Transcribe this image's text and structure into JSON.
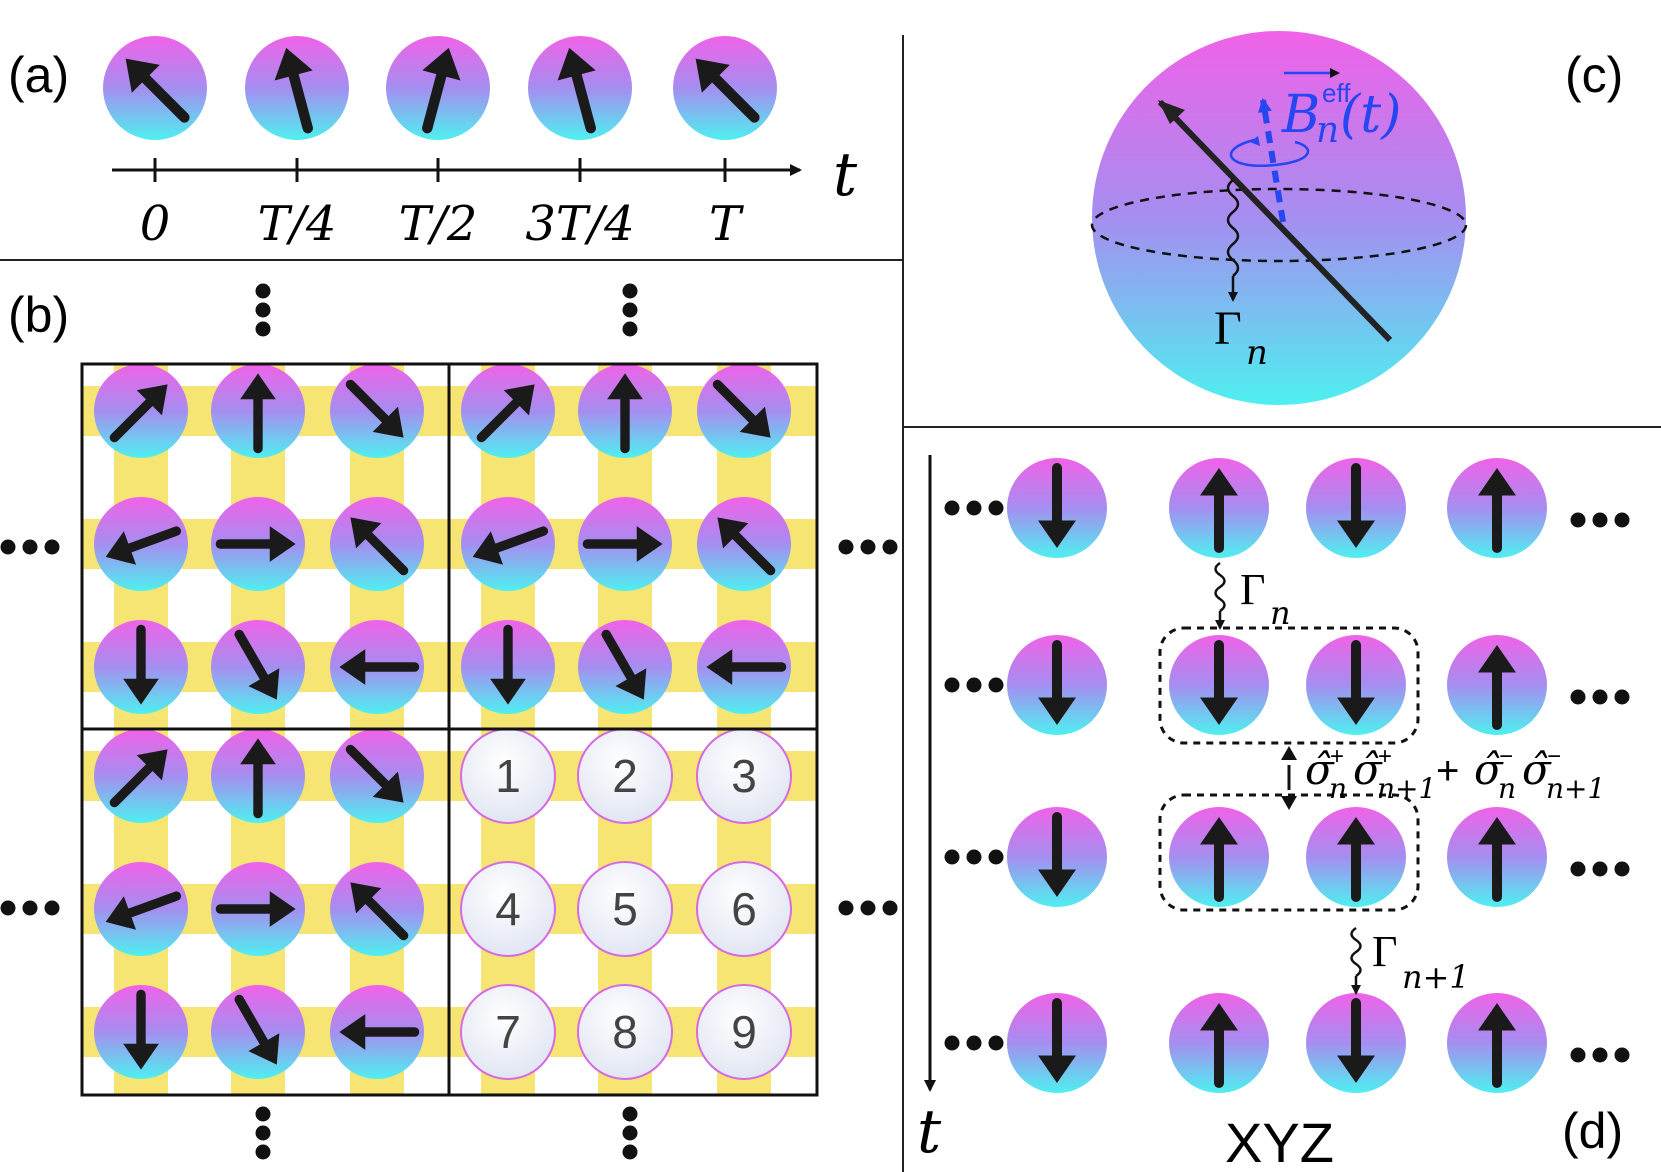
{
  "panels": {
    "a": {
      "label": "(a)",
      "time_axis_label": "t",
      "ticks": [
        "0",
        "T/4",
        "T/2",
        "3T/4",
        "T"
      ],
      "spin_angles_deg": [
        -45,
        -15,
        15,
        -15,
        -45
      ]
    },
    "b": {
      "label": "(b)",
      "cell_spin_angles_deg": [
        [
          45,
          0,
          135
        ],
        [
          -110,
          90,
          -45
        ],
        [
          180,
          150,
          -90
        ]
      ],
      "site_numbers": [
        "1",
        "2",
        "3",
        "4",
        "5",
        "6",
        "7",
        "8",
        "9"
      ]
    },
    "c": {
      "label": "(c)",
      "field_label": "B",
      "field_superscript": "eff",
      "field_subscript": "n",
      "field_argument": "(t)",
      "decay_label": "Γ",
      "decay_subscript": "n"
    },
    "d": {
      "label": "(d)",
      "time_axis_label": "t",
      "model_label": "XYZ",
      "rows": [
        [
          "down",
          "up",
          "down",
          "up"
        ],
        [
          "down",
          "down",
          "down",
          "up"
        ],
        [
          "down",
          "up",
          "up",
          "up"
        ],
        [
          "down",
          "up",
          "down",
          "up"
        ]
      ],
      "decay_1": {
        "symbol": "Γ",
        "subscript": "n"
      },
      "decay_2": {
        "symbol": "Γ",
        "subscript": "n+1"
      },
      "coupling": {
        "term1_a_sub": "n",
        "term1_b_sub": "n+1",
        "plus": "+",
        "sup_plus": "+",
        "sup_minus": "−",
        "sigma": "σ̂"
      }
    }
  },
  "colors": {
    "sphere_top": "#f062e8",
    "sphere_mid": "#a58ef0",
    "sphere_bottom": "#4ef0f0",
    "lattice_bond": "#f5e15a",
    "arrow": "#1a1a1a",
    "field_arrow": "#2546f0",
    "divider": "#222222"
  }
}
